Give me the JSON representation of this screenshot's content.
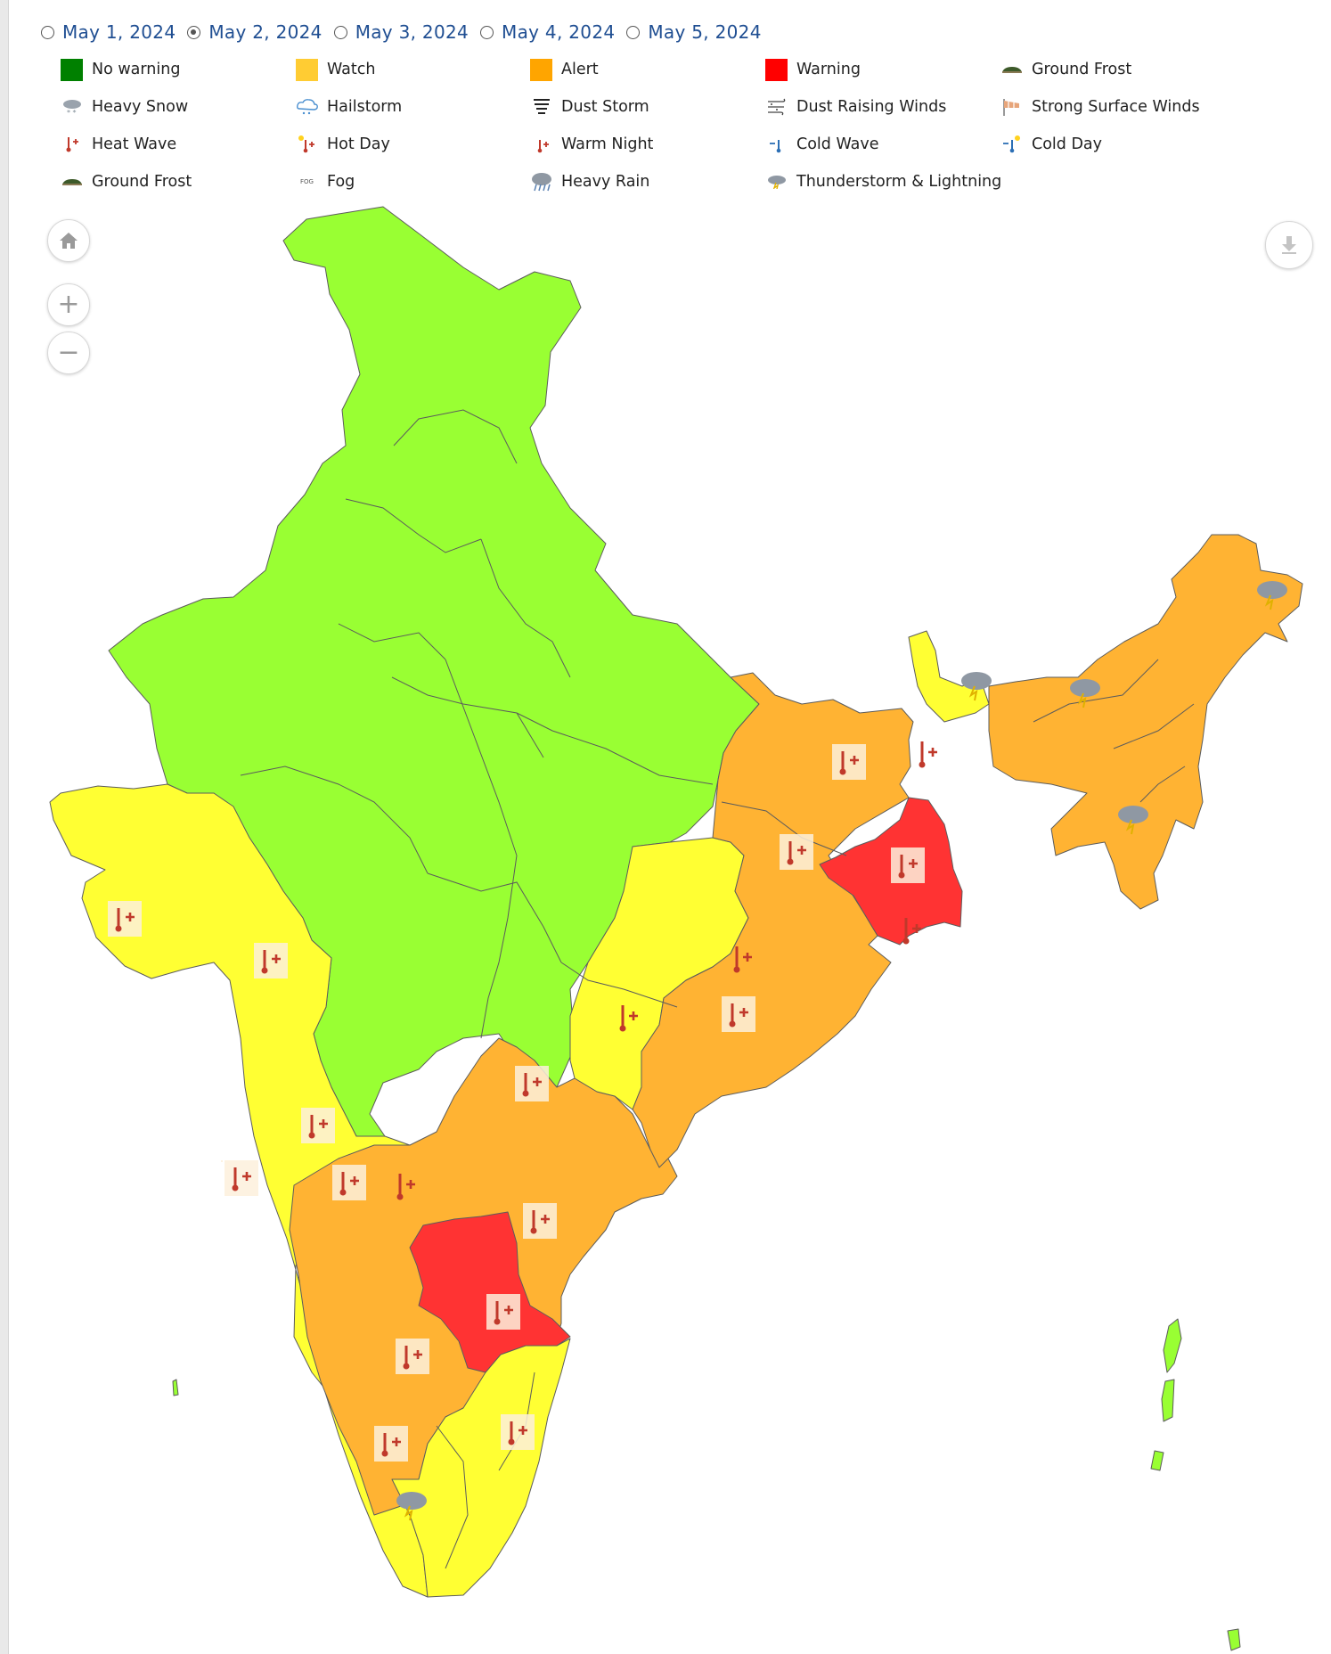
{
  "dates": [
    {
      "label": "May 1, 2024",
      "selected": false
    },
    {
      "label": "May 2, 2024",
      "selected": true
    },
    {
      "label": "May 3, 2024",
      "selected": false
    },
    {
      "label": "May 4, 2024",
      "selected": false
    },
    {
      "label": "May 5, 2024",
      "selected": false
    }
  ],
  "legend": {
    "no_warning": {
      "label": "No warning",
      "color": "#008000"
    },
    "watch": {
      "label": "Watch",
      "color": "#ffcc33"
    },
    "alert": {
      "label": "Alert",
      "color": "#ffa500"
    },
    "warning": {
      "label": "Warning",
      "color": "#ff0000"
    },
    "ground_frost_1": {
      "label": "Ground Frost",
      "icon": "ground-frost-icon"
    },
    "heavy_snow": {
      "label": "Heavy Snow",
      "icon": "heavy-snow-icon"
    },
    "hailstorm": {
      "label": "Hailstorm",
      "icon": "hailstorm-icon"
    },
    "dust_storm": {
      "label": "Dust Storm",
      "icon": "dust-storm-icon"
    },
    "dust_raising_winds": {
      "label": "Dust Raising Winds",
      "icon": "dust-raising-winds-icon"
    },
    "strong_surface_winds": {
      "label": "Strong Surface Winds",
      "icon": "strong-surface-winds-icon"
    },
    "heat_wave": {
      "label": "Heat Wave",
      "icon": "heat-wave-icon"
    },
    "hot_day": {
      "label": "Hot Day",
      "icon": "hot-day-icon"
    },
    "warm_night": {
      "label": "Warm Night",
      "icon": "warm-night-icon"
    },
    "cold_wave": {
      "label": "Cold Wave",
      "icon": "cold-wave-icon"
    },
    "cold_day": {
      "label": "Cold Day",
      "icon": "cold-day-icon"
    },
    "ground_frost_2": {
      "label": "Ground Frost",
      "icon": "ground-frost-icon"
    },
    "fog": {
      "label": "Fog",
      "icon_text": "FOG"
    },
    "heavy_rain": {
      "label": "Heavy Rain",
      "icon": "heavy-rain-icon"
    },
    "thunderstorm": {
      "label": "Thunderstorm & Lightning",
      "icon": "thunderstorm-icon"
    }
  },
  "map": {
    "fill_colors": {
      "no_warning": "#99ff33",
      "watch": "#ffff33",
      "alert": "#ffb333",
      "warning": "#ff3333"
    },
    "controls": {
      "home": "home-icon",
      "zoom_in": "+",
      "zoom_out": "−",
      "download": "download-icon"
    }
  }
}
